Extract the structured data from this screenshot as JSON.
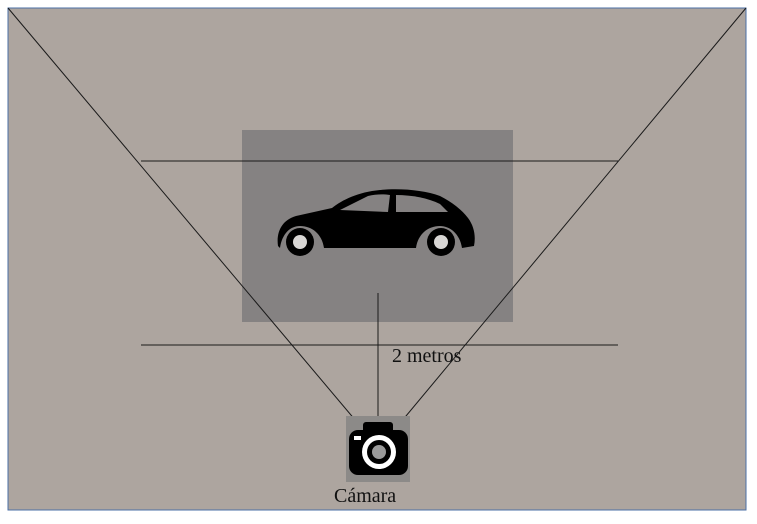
{
  "diagram": {
    "distance_label": "2 metros",
    "camera_label": "Cámara"
  },
  "colors": {
    "background": "#ada59f",
    "frame_border": "#4a6fa5",
    "target_box": "#858282",
    "camera_box": "#8c8a88",
    "lines": "#1a1a1a",
    "car": "#000000"
  },
  "icons": {
    "vehicle": "car-icon",
    "camera": "camera-icon"
  }
}
